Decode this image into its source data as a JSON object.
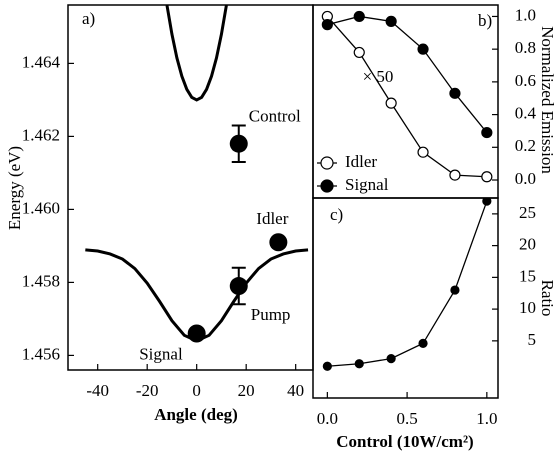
{
  "chart_data": [
    {
      "type": "line",
      "label": "a)",
      "xlabel": "Angle (deg)",
      "ylabel": "Energy (eV)",
      "xlim": [
        -52,
        47
      ],
      "ylim": [
        1.4556,
        1.4656
      ],
      "xticks": [
        -40,
        -20,
        0,
        20,
        40
      ],
      "yticks": [
        1.456,
        1.458,
        {
          "value": 1.46,
          "label": "1.460"
        },
        1.462,
        1.464
      ],
      "curves": [
        {
          "x": [
            -45,
            -40,
            -35,
            -30,
            -25,
            -20,
            -15,
            -10,
            -5,
            0,
            5,
            10,
            15,
            20,
            25,
            30,
            35,
            40,
            45
          ],
          "values": [
            1.45889,
            1.45886,
            1.45878,
            1.45864,
            1.45838,
            1.45798,
            1.45748,
            1.45695,
            1.45655,
            1.4564,
            1.45655,
            1.45695,
            1.45748,
            1.45798,
            1.45838,
            1.45864,
            1.45878,
            1.45886,
            1.45889
          ]
        },
        {
          "x": [
            -12,
            -10,
            -8,
            -6,
            -4,
            -2,
            0,
            2,
            4,
            6,
            8,
            10,
            12
          ],
          "values": [
            1.46559,
            1.4648,
            1.46415,
            1.46365,
            1.46329,
            1.46307,
            1.463,
            1.46307,
            1.46329,
            1.46365,
            1.46415,
            1.4648,
            1.46559
          ]
        }
      ],
      "points": {
        "labels": [
          "Control",
          "Pump",
          "Signal",
          "Idler"
        ],
        "x": [
          17,
          17,
          0,
          33
        ],
        "values": [
          1.4618,
          1.4579,
          1.4566,
          1.4591
        ],
        "errors": [
          0.0005,
          0.0005,
          null,
          null
        ]
      }
    },
    {
      "type": "line",
      "label": "b)",
      "ylabel": "Normalized Emission",
      "annotation": "× 50",
      "yaxis": "right",
      "xlim": [
        -0.09,
        1.07
      ],
      "ylim": [
        -0.11,
        1.07
      ],
      "yticks": [
        {
          "value": 0,
          "label": "0.0"
        },
        0.2,
        0.4,
        0.6,
        0.8,
        {
          "value": 1,
          "label": "1.0"
        }
      ],
      "x": [
        0,
        0.2,
        0.4,
        0.6,
        0.8,
        1.0
      ],
      "series": [
        {
          "name": "Idler",
          "color": "#000000",
          "fill": "#ffffff",
          "values": [
            1.0,
            0.78,
            0.47,
            0.17,
            0.03,
            0.02
          ]
        },
        {
          "name": "Signal",
          "color": "#000000",
          "fill": "#000000",
          "values": [
            0.95,
            1.0,
            0.97,
            0.8,
            0.53,
            0.29
          ]
        }
      ]
    },
    {
      "type": "line",
      "label": "c)",
      "xlabel": "Control (10W/cm²)",
      "ylabel": "Ratio",
      "yaxis": "right",
      "xlim": [
        -0.09,
        1.07
      ],
      "ylim": [
        -4,
        27.5
      ],
      "xticks": [
        {
          "value": 0,
          "label": "0.0"
        },
        0.5,
        {
          "value": 1,
          "label": "1.0"
        }
      ],
      "yticks": [
        5,
        10,
        15,
        20,
        25
      ],
      "x": [
        0,
        0.2,
        0.4,
        0.6,
        0.8,
        1.0
      ],
      "series": [
        {
          "color": "#000000",
          "fill": "#000000",
          "values": [
            1,
            1.4,
            2.2,
            4.6,
            13,
            27
          ]
        }
      ]
    }
  ]
}
